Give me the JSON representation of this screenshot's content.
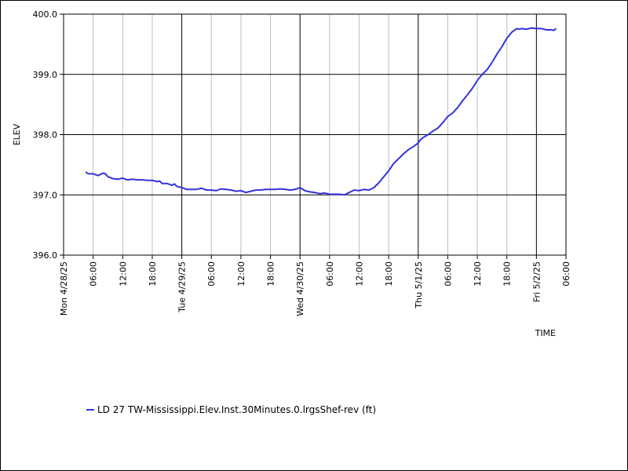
{
  "chart_data": {
    "type": "line",
    "xlabel": "TIME",
    "ylabel": "ELEV",
    "ylim": [
      396.0,
      400.0
    ],
    "y_ticks": [
      "396.0",
      "397.0",
      "398.0",
      "399.0",
      "400.0"
    ],
    "x_range_hours": [
      0,
      102
    ],
    "x_ticks": [
      {
        "hour": 0,
        "label": "Mon 4/28/25",
        "major": true
      },
      {
        "hour": 6,
        "label": "06:00",
        "major": false
      },
      {
        "hour": 12,
        "label": "12:00",
        "major": false
      },
      {
        "hour": 18,
        "label": "18:00",
        "major": false
      },
      {
        "hour": 24,
        "label": "Tue 4/29/25",
        "major": true
      },
      {
        "hour": 30,
        "label": "06:00",
        "major": false
      },
      {
        "hour": 36,
        "label": "12:00",
        "major": false
      },
      {
        "hour": 42,
        "label": "18:00",
        "major": false
      },
      {
        "hour": 48,
        "label": "Wed 4/30/25",
        "major": true
      },
      {
        "hour": 54,
        "label": "06:00",
        "major": false
      },
      {
        "hour": 60,
        "label": "12:00",
        "major": false
      },
      {
        "hour": 66,
        "label": "18:00",
        "major": false
      },
      {
        "hour": 72,
        "label": "Thu 5/1/25",
        "major": true
      },
      {
        "hour": 78,
        "label": "06:00",
        "major": false
      },
      {
        "hour": 84,
        "label": "12:00",
        "major": false
      },
      {
        "hour": 90,
        "label": "18:00",
        "major": false
      },
      {
        "hour": 96,
        "label": "Fri 5/2/25",
        "major": true
      },
      {
        "hour": 102,
        "label": "06:00",
        "major": false
      }
    ],
    "line_color": "#3333dd",
    "series": [
      {
        "name": "LD 27 TW-Mississippi.Elev.Inst.30Minutes.0.lrgsShef-rev (ft)",
        "x": [
          4.5,
          5,
          6,
          7,
          8,
          8.5,
          9,
          10,
          11,
          12,
          12.5,
          13,
          14,
          15,
          16,
          17,
          18,
          19,
          19.5,
          20,
          21,
          22,
          22.5,
          23,
          24,
          25,
          26,
          27,
          28,
          29,
          30,
          31,
          32,
          33,
          34,
          35,
          36,
          37,
          38,
          39,
          40,
          41,
          42,
          43,
          44,
          45,
          46,
          47,
          48,
          49,
          50,
          51,
          52,
          53,
          54,
          55,
          56,
          57,
          58,
          59,
          60,
          61,
          62,
          63,
          64,
          65,
          66,
          67,
          68,
          69,
          70,
          71,
          72,
          72.5,
          73,
          74,
          75,
          76,
          77,
          78,
          79,
          80,
          81,
          82,
          83,
          84,
          85,
          86,
          87,
          88,
          89,
          90,
          91,
          92,
          92.5,
          93,
          94,
          95,
          96,
          97,
          98,
          99,
          99.5,
          100
        ],
        "y": [
          397.38,
          397.35,
          397.35,
          397.32,
          397.36,
          397.35,
          397.3,
          397.27,
          397.26,
          397.28,
          397.26,
          397.25,
          397.26,
          397.25,
          397.25,
          397.24,
          397.24,
          397.22,
          397.23,
          397.19,
          397.19,
          397.16,
          397.18,
          397.14,
          397.12,
          397.09,
          397.09,
          397.09,
          397.11,
          397.08,
          397.08,
          397.07,
          397.1,
          397.09,
          397.08,
          397.06,
          397.07,
          397.04,
          397.06,
          397.08,
          397.08,
          397.09,
          397.09,
          397.09,
          397.1,
          397.09,
          397.08,
          397.09,
          397.12,
          397.07,
          397.05,
          397.04,
          397.02,
          397.03,
          397.01,
          397.01,
          397.01,
          397.0,
          397.04,
          397.08,
          397.07,
          397.09,
          397.08,
          397.12,
          397.2,
          397.3,
          397.4,
          397.52,
          397.6,
          397.68,
          397.75,
          397.8,
          397.86,
          397.92,
          397.95,
          398.0,
          398.06,
          398.11,
          398.2,
          398.3,
          398.36,
          398.45,
          398.56,
          398.66,
          398.77,
          398.9,
          399.0,
          399.08,
          399.2,
          399.34,
          399.46,
          399.6,
          399.7,
          399.76,
          399.75,
          399.76,
          399.75,
          399.77,
          399.76,
          399.76,
          399.74,
          399.74,
          399.73,
          399.76
        ]
      }
    ],
    "grid": true,
    "legend_position": "bottom-left"
  }
}
